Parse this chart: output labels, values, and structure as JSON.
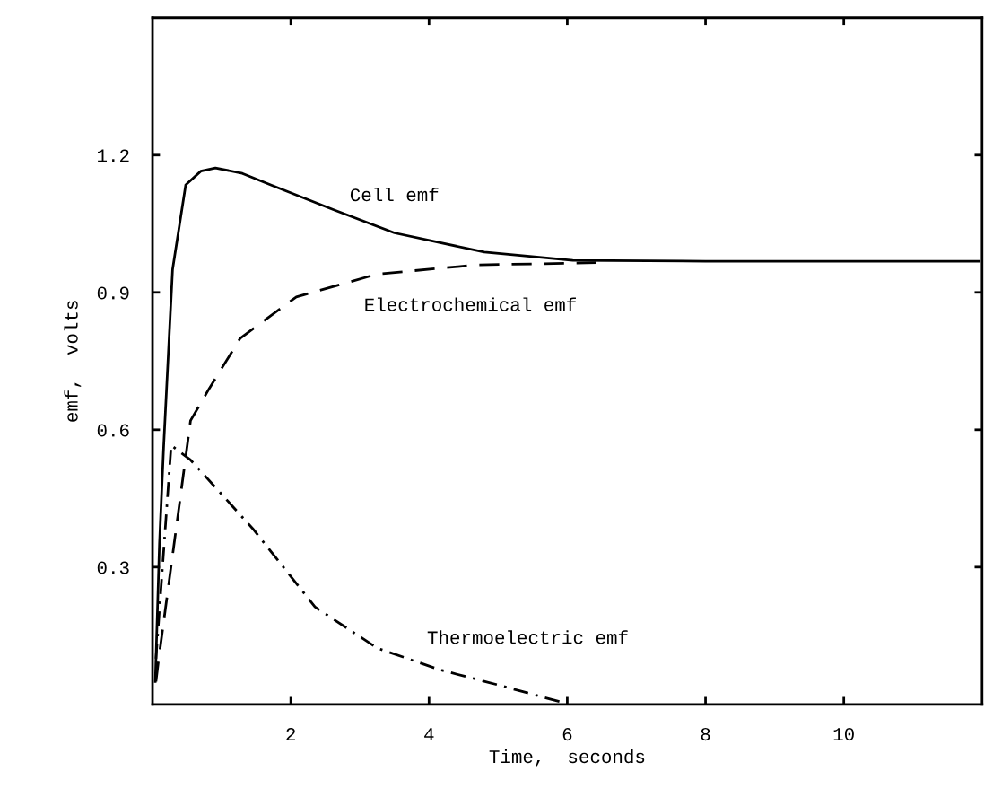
{
  "chart_data": {
    "type": "line",
    "xlabel": "Time,  seconds",
    "ylabel": "emf,  volts",
    "xlim": [
      0,
      12
    ],
    "ylim": [
      0,
      1.5
    ],
    "xticks": [
      2,
      4,
      6,
      8,
      10
    ],
    "yticks": [
      0.3,
      0.6,
      0.9,
      1.2
    ],
    "grid": false,
    "legend": false,
    "marker": "none",
    "series": [
      {
        "name": "Cell emf",
        "color": "#000000",
        "line_style": "solid",
        "x": [
          0.04,
          0.1,
          0.16,
          0.29,
          0.48,
          0.7,
          0.91,
          1.3,
          1.71,
          2.63,
          3.5,
          4.8,
          6.08,
          8,
          10,
          11.96
        ],
        "values": [
          0.05,
          0.35,
          0.56,
          0.95,
          1.135,
          1.165,
          1.172,
          1.16,
          1.135,
          1.08,
          1.03,
          0.988,
          0.97,
          0.968,
          0.968,
          0.968
        ]
      },
      {
        "name": "Electrochemical emf",
        "color": "#000000",
        "line_style": "dashed",
        "x": [
          0.05,
          0.09,
          0.4,
          0.55,
          0.82,
          1.27,
          2.08,
          3.25,
          4.68,
          6.48
        ],
        "values": [
          0.05,
          0.1,
          0.45,
          0.62,
          0.69,
          0.8,
          0.89,
          0.94,
          0.96,
          0.965
        ]
      },
      {
        "name": "Thermoelectric emf",
        "color": "#000000",
        "line_style": "dashdot",
        "x": [
          0.05,
          0.27,
          0.55,
          1.45,
          2.35,
          3.25,
          4.15,
          5.04,
          5.94
        ],
        "values": [
          0.1,
          0.566,
          0.534,
          0.384,
          0.213,
          0.123,
          0.076,
          0.041,
          0.004
        ]
      }
    ]
  }
}
